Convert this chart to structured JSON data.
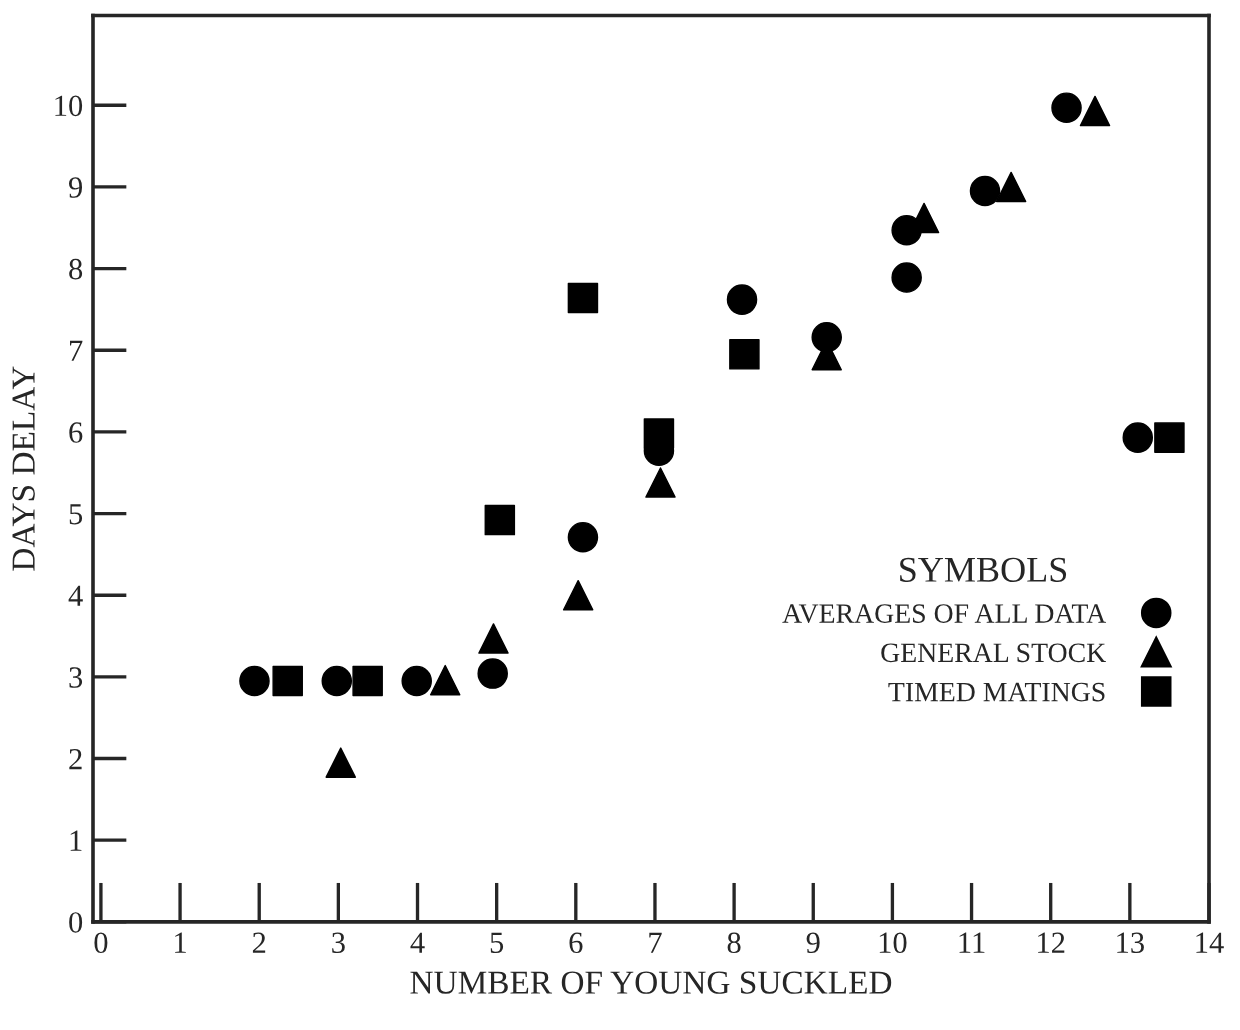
{
  "chart_data": {
    "type": "scatter",
    "xlabel": "NUMBER OF YOUNG SUCKLED",
    "ylabel": "DAYS DELAY",
    "legend_title": "SYMBOLS",
    "xlim": [
      -0.1,
      14
    ],
    "xticks": [
      0,
      1,
      2,
      3,
      4,
      5,
      6,
      7,
      8,
      9,
      10,
      11,
      12,
      13,
      14
    ],
    "ylim": [
      0,
      11.1
    ],
    "yticks": [
      0,
      1,
      2,
      3,
      4,
      5,
      6,
      7,
      8,
      9,
      10
    ],
    "grid": false,
    "legend": "right",
    "series": [
      {
        "name": "AVERAGES OF ALL DATA",
        "color": "#000000",
        "marker": "circle",
        "x": [
          1.94,
          2.98,
          3.99,
          4.95,
          6.09,
          7.05,
          8.1,
          9.17,
          10.18,
          10.18,
          11.17,
          12.2,
          13.1
        ],
        "values": [
          2.95,
          2.95,
          2.95,
          3.04,
          4.71,
          5.77,
          7.62,
          7.16,
          8.47,
          7.89,
          8.95,
          9.97,
          5.93
        ]
      },
      {
        "name": "GENERAL STOCK",
        "color": "#000000",
        "marker": "triangle",
        "x": [
          3.03,
          4.35,
          4.96,
          6.03,
          7.07,
          9.17,
          10.4,
          11.5,
          12.56
        ],
        "values": [
          1.95,
          2.96,
          3.47,
          4.0,
          5.38,
          6.94,
          8.62,
          9.0,
          9.93
        ]
      },
      {
        "name": "TIMED MATINGS",
        "color": "#000000",
        "marker": "square",
        "x": [
          2.36,
          3.37,
          5.04,
          6.09,
          7.05,
          8.13,
          13.5
        ],
        "values": [
          2.95,
          2.95,
          4.92,
          7.64,
          5.98,
          6.95,
          5.93
        ]
      }
    ]
  }
}
